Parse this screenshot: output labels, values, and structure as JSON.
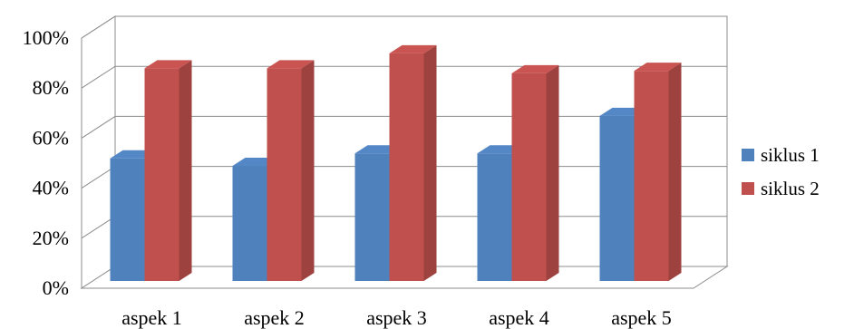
{
  "chart_data": {
    "type": "bar",
    "title": "",
    "xlabel": "",
    "ylabel": "",
    "categories": [
      "aspek 1",
      "aspek 2",
      "aspek 3",
      "aspek 4",
      "aspek 5"
    ],
    "series": [
      {
        "name": "siklus 1",
        "values": [
          49,
          46,
          51,
          51,
          66
        ],
        "color": "#4F81BD"
      },
      {
        "name": "siklus 2",
        "values": [
          85,
          85,
          91,
          83,
          84
        ],
        "color": "#C0504D"
      }
    ],
    "ylim": [
      0,
      100
    ],
    "yticks": [
      "0%",
      "20%",
      "40%",
      "60%",
      "80%",
      "100%"
    ],
    "grid": true,
    "legend": "right",
    "style": "3d-clustered-column"
  }
}
